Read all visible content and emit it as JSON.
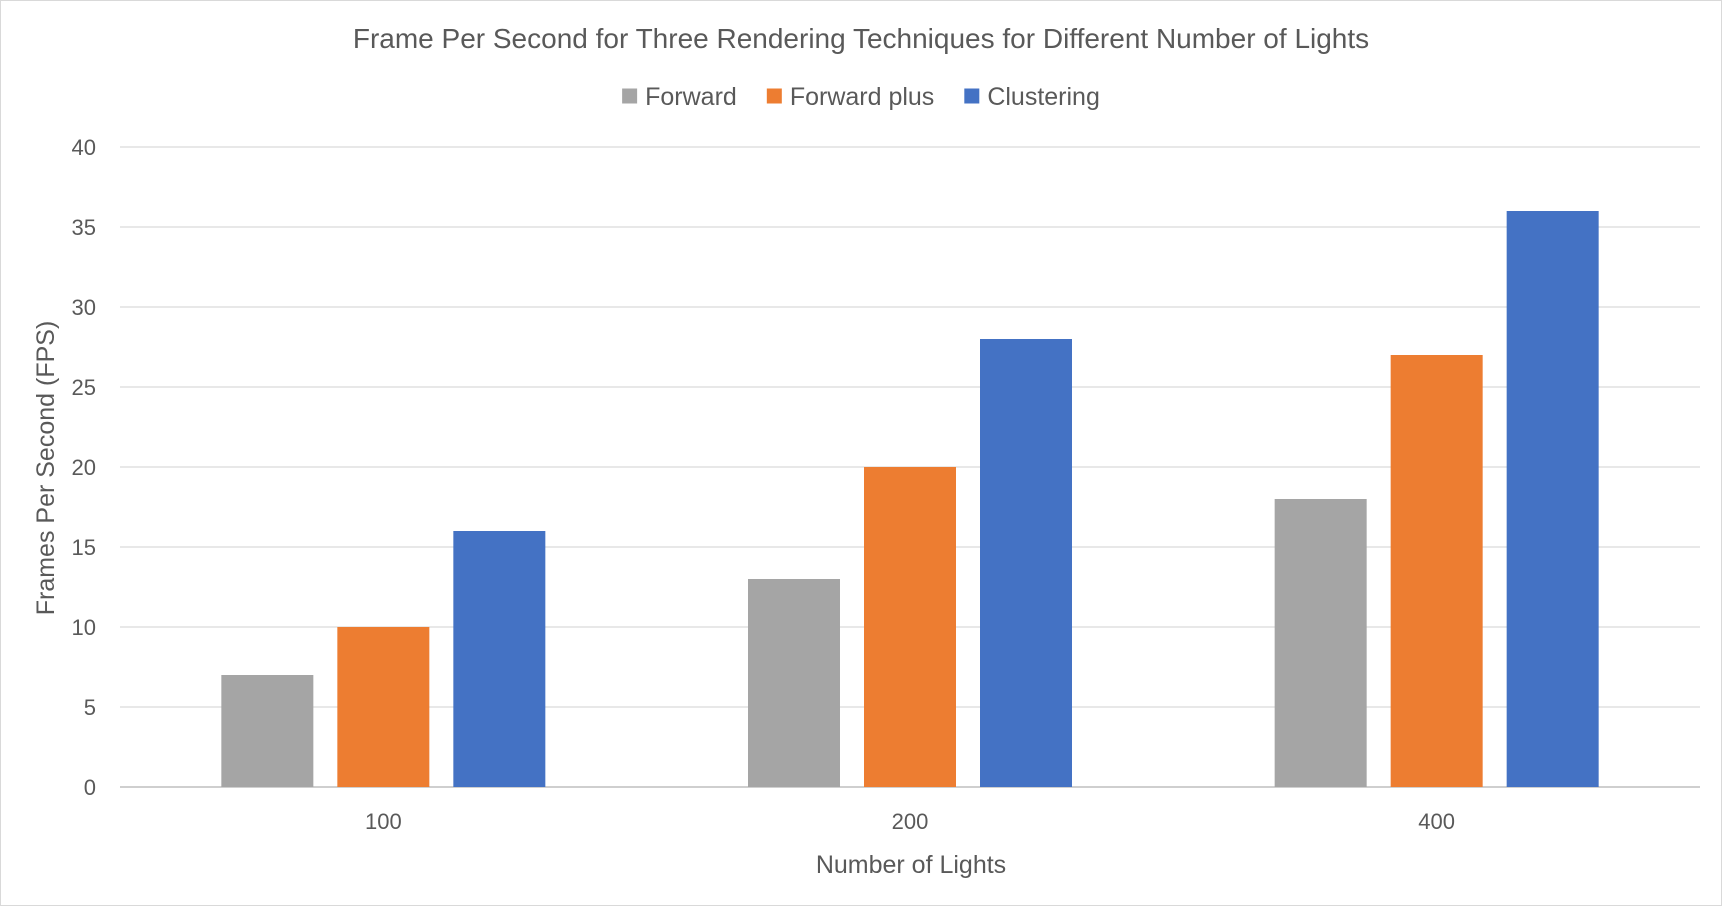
{
  "chart_data": {
    "type": "bar",
    "title": "Frame Per Second for Three Rendering Techniques for Different Number of Lights",
    "xlabel": "Number of Lights",
    "ylabel": "Frames Per Second (FPS)",
    "categories": [
      "100",
      "200",
      "400"
    ],
    "series": [
      {
        "name": "Forward",
        "color": "#a5a5a5",
        "values": [
          7,
          13,
          18
        ]
      },
      {
        "name": "Forward plus",
        "color": "#ed7d31",
        "values": [
          10,
          20,
          27
        ]
      },
      {
        "name": "Clustering",
        "color": "#4472c4",
        "values": [
          16,
          28,
          36
        ]
      }
    ],
    "ylim": [
      0,
      40
    ],
    "yticks": [
      0,
      5,
      10,
      15,
      20,
      25,
      30,
      35,
      40
    ],
    "grid": true,
    "legend_position": "top"
  }
}
